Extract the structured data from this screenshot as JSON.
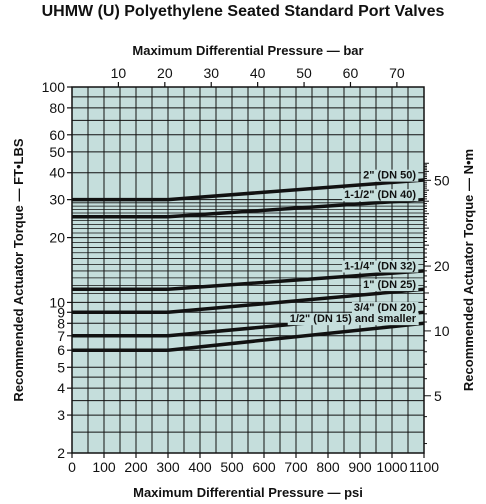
{
  "chart_data": {
    "type": "line",
    "title": "UHMW (U) Polyethylene Seated Standard Port Valves",
    "x_bottom": {
      "label": "Maximum Differential Pressure — psi",
      "range": [
        0,
        1100
      ],
      "ticks": [
        "0",
        "100",
        "200",
        "300",
        "400",
        "500",
        "600",
        "700",
        "800",
        "900",
        "1000",
        "1100"
      ]
    },
    "x_top": {
      "label": "Maximum Differential Pressure — bar",
      "ticks": [
        {
          "label": "10",
          "value": 10
        },
        {
          "label": "20",
          "value": 20
        },
        {
          "label": "30",
          "value": 30
        },
        {
          "label": "40",
          "value": 40
        },
        {
          "label": "50",
          "value": 50
        },
        {
          "label": "60",
          "value": 60
        },
        {
          "label": "70",
          "value": 70
        }
      ]
    },
    "y_left": {
      "label": "Recommended Actuator Torque — FT•LBS",
      "scale": "log",
      "range": [
        2,
        100
      ],
      "ticks": [
        {
          "label": "2",
          "value": 2
        },
        {
          "label": "3",
          "value": 3
        },
        {
          "label": "4",
          "value": 4
        },
        {
          "label": "5",
          "value": 5
        },
        {
          "label": "6",
          "value": 6
        },
        {
          "label": "7",
          "value": 7
        },
        {
          "label": "8",
          "value": 8
        },
        {
          "label": "9",
          "value": 9
        },
        {
          "label": "10",
          "value": 10
        },
        {
          "label": "20",
          "value": 20
        },
        {
          "label": "30",
          "value": 30
        },
        {
          "label": "40",
          "value": 40
        },
        {
          "label": "50",
          "value": 50
        },
        {
          "label": "60",
          "value": 60
        },
        {
          "label": "80",
          "value": 80
        },
        {
          "label": "100",
          "value": 100
        }
      ]
    },
    "y_right": {
      "label": "Recommended Actuator Torque — N•m",
      "scale": "log",
      "ticks": [
        {
          "label": "5",
          "value": 5
        },
        {
          "label": "10",
          "value": 10
        },
        {
          "label": "20",
          "value": 20
        },
        {
          "label": "50",
          "value": 50
        }
      ]
    },
    "grid": true,
    "series": [
      {
        "name": "2\" (DN 50)",
        "x": [
          0,
          300,
          1100
        ],
        "y": [
          30,
          30,
          37
        ]
      },
      {
        "name": "1-1/2\" (DN 40)",
        "x": [
          0,
          300,
          1100
        ],
        "y": [
          25,
          25,
          30
        ]
      },
      {
        "name": "1-1/4\" (DN 32)",
        "x": [
          0,
          300,
          1100
        ],
        "y": [
          11.5,
          11.5,
          14
        ]
      },
      {
        "name": "1\" (DN 25)",
        "x": [
          0,
          300,
          1100
        ],
        "y": [
          9,
          9,
          11.5
        ]
      },
      {
        "name": "3/4\" (DN 20)",
        "x": [
          0,
          300,
          1100
        ],
        "y": [
          7,
          7,
          9
        ]
      },
      {
        "name": "1/2\" (DN 15) and smaller",
        "x": [
          0,
          300,
          1100
        ],
        "y": [
          6,
          6,
          8
        ]
      }
    ],
    "colors": {
      "plot_background": "#c5dedc",
      "grid": "#111111",
      "line": "#111111"
    }
  }
}
